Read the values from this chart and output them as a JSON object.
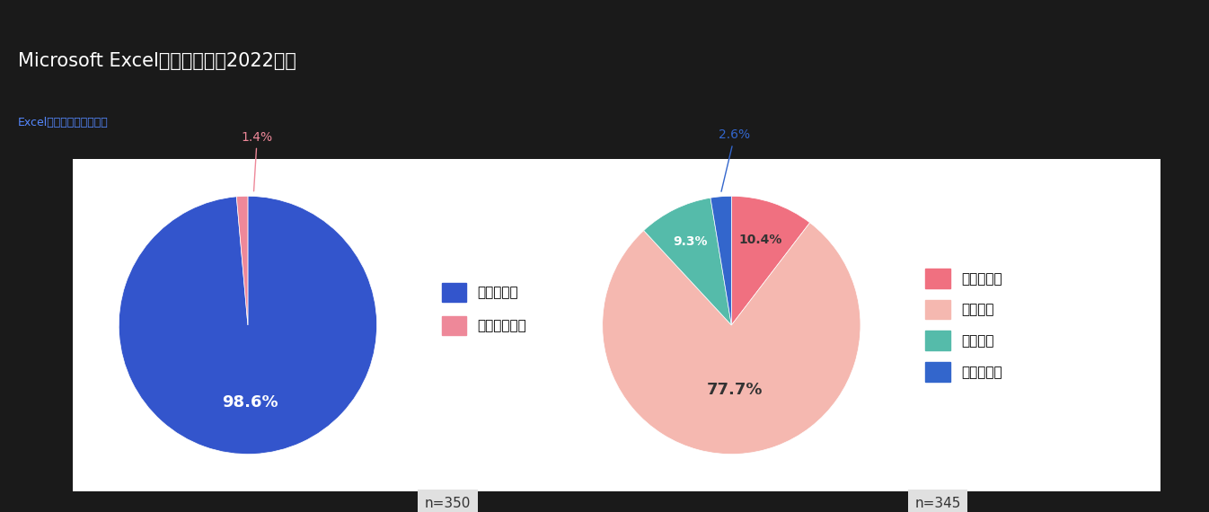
{
  "title": "Microsoft Excelの利用状況（2022年）",
  "subtitle": "Excelの利用状況と満足度",
  "background_color": "#1a1a1a",
  "chart_background": "#ffffff",
  "title_color": "#ffffff",
  "subtitle_color": "#5588ff",
  "pie1": {
    "values": [
      98.6,
      1.4
    ],
    "labels": [
      "使っている",
      "使っていない"
    ],
    "colors": [
      "#3355cc",
      "#ee8899"
    ],
    "n_label": "n=350",
    "startangle": 90,
    "pct_labels": [
      "98.6%",
      "1.4%"
    ]
  },
  "pie2": {
    "values": [
      10.4,
      77.7,
      9.3,
      2.6
    ],
    "labels": [
      "とても満足",
      "まあ満足",
      "やや不満",
      "とても不満"
    ],
    "colors": [
      "#f07080",
      "#f5b8b0",
      "#55bbaa",
      "#3366cc"
    ],
    "n_label": "n=345",
    "startangle": 90,
    "pct_labels": [
      "10.4%",
      "77.7%",
      "9.3%",
      "2.6%"
    ]
  }
}
